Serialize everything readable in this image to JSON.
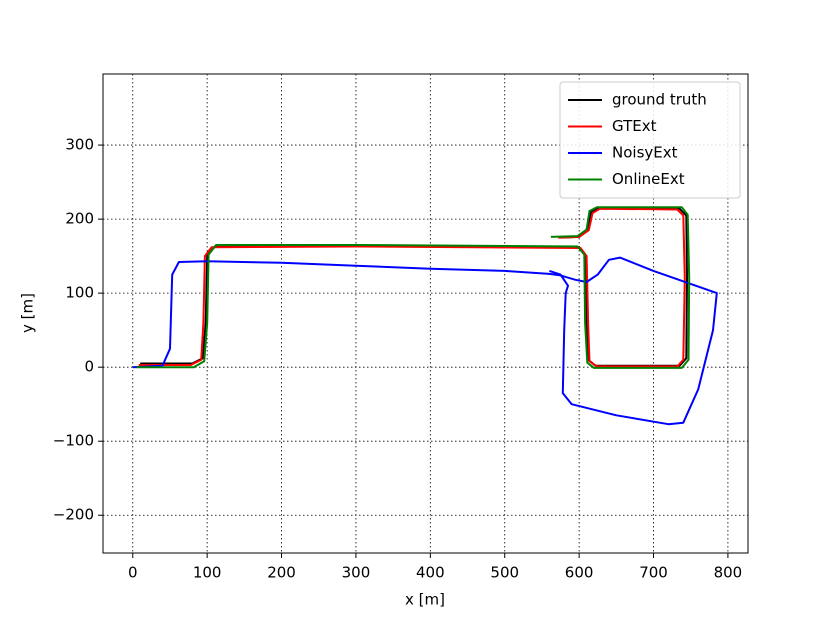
{
  "chart_data": {
    "type": "line",
    "xlabel": "x [m]",
    "ylabel": "y [m]",
    "xlim": [
      -40,
      827
    ],
    "ylim": [
      -251,
      396
    ],
    "xticks": [
      0,
      100,
      200,
      300,
      400,
      500,
      600,
      700,
      800
    ],
    "yticks": [
      {
        "value": -200,
        "label": "−200"
      },
      {
        "value": -100,
        "label": "−100"
      },
      0,
      100,
      200,
      300
    ],
    "grid": true,
    "legend": "upper right",
    "series": [
      {
        "name": "ground truth",
        "color": "#000000",
        "x": [
          10,
          80,
          94,
          98,
          100,
          110,
          300,
          600,
          609,
          610,
          612,
          622,
          735,
          744,
          745,
          744,
          735,
          625,
          616,
          612,
          600,
          575
        ],
        "values": [
          5,
          5,
          12,
          60,
          150,
          163,
          164,
          162,
          150,
          60,
          10,
          2,
          2,
          12,
          120,
          205,
          214,
          215,
          210,
          185,
          176,
          175
        ]
      },
      {
        "name": "GTExt",
        "color": "#ff0000",
        "x": [
          8,
          78,
          92,
          95,
          97,
          106,
          300,
          602,
          610,
          612,
          614,
          624,
          732,
          740,
          742,
          740,
          732,
          628,
          618,
          613,
          600,
          572
        ],
        "values": [
          3,
          3,
          10,
          60,
          150,
          162,
          163,
          161,
          150,
          60,
          8,
          1,
          1,
          10,
          120,
          205,
          213,
          214,
          208,
          185,
          176,
          175
        ]
      },
      {
        "name": "NoisyExt",
        "color": "#0000ff",
        "x": [
          0,
          40,
          50,
          53,
          62,
          100,
          200,
          300,
          400,
          500,
          560,
          575,
          595,
          610,
          625,
          640,
          655,
          700,
          785,
          780,
          760,
          740,
          720,
          650,
          590,
          578,
          580,
          582,
          585,
          575,
          560
        ],
        "values": [
          0,
          2,
          25,
          125,
          142,
          143,
          141,
          137,
          133,
          130,
          126,
          124,
          118,
          115,
          125,
          145,
          148,
          130,
          100,
          50,
          -30,
          -75,
          -77,
          -65,
          -50,
          -35,
          50,
          100,
          110,
          125,
          130
        ]
      },
      {
        "name": "OnlineExt",
        "color": "#008000",
        "x": [
          5,
          82,
          96,
          100,
          102,
          112,
          300,
          598,
          607,
          608,
          611,
          620,
          738,
          747,
          748,
          746,
          738,
          624,
          614,
          610,
          598,
          562
        ],
        "values": [
          0,
          0,
          8,
          60,
          152,
          165,
          165,
          163,
          152,
          60,
          6,
          -1,
          -1,
          10,
          120,
          206,
          216,
          216,
          211,
          186,
          177,
          176
        ]
      }
    ]
  }
}
